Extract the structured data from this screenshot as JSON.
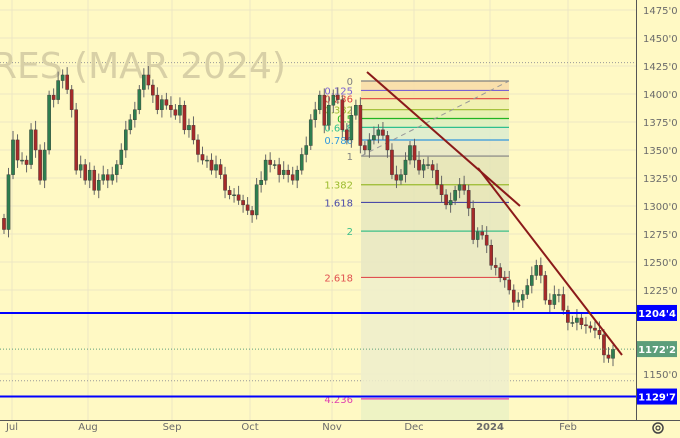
{
  "watermark": "RES (MAR 2024)",
  "chart_data": {
    "type": "candlestick",
    "ylim": [
      1120,
      1480
    ],
    "y_ticks": [
      "1475'0",
      "1450'0",
      "1425'0",
      "1400'0",
      "1375'0",
      "1350'0",
      "1325'0",
      "1300'0",
      "1275'0",
      "1250'0",
      "1225'0",
      "1150'0"
    ],
    "y_tick_values": [
      1475,
      1450,
      1425,
      1400,
      1375,
      1350,
      1325,
      1300,
      1275,
      1250,
      1225,
      1150
    ],
    "x_ticks": [
      "Jul",
      "Aug",
      "Sep",
      "Oct",
      "Nov",
      "Dec",
      "2024",
      "Feb"
    ],
    "closes": [
      1279,
      1328,
      1359,
      1341,
      1341,
      1337,
      1368,
      1350,
      1323,
      1350,
      1399,
      1395,
      1412,
      1417,
      1404,
      1386,
      1332,
      1337,
      1323,
      1332,
      1314,
      1323,
      1328,
      1323,
      1328,
      1337,
      1350,
      1368,
      1377,
      1386,
      1404,
      1417,
      1408,
      1399,
      1386,
      1395,
      1390,
      1386,
      1381,
      1390,
      1368,
      1372,
      1359,
      1346,
      1341,
      1341,
      1332,
      1337,
      1328,
      1314,
      1310,
      1310,
      1305,
      1301,
      1296,
      1292,
      1319,
      1323,
      1341,
      1337,
      1337,
      1328,
      1332,
      1328,
      1323,
      1332,
      1346,
      1354,
      1377,
      1386,
      1399,
      1372,
      1390,
      1399,
      1395,
      1368,
      1359,
      1381,
      1390,
      1354,
      1350,
      1359,
      1363,
      1368,
      1363,
      1350,
      1328,
      1323,
      1328,
      1341,
      1354,
      1341,
      1332,
      1337,
      1337,
      1332,
      1319,
      1310,
      1301,
      1305,
      1314,
      1319,
      1314,
      1298,
      1270,
      1277,
      1274,
      1265,
      1247,
      1245,
      1236,
      1234,
      1225,
      1214,
      1216,
      1221,
      1229,
      1238,
      1247,
      1238,
      1216,
      1212,
      1221,
      1221,
      1207,
      1196,
      1196,
      1200,
      1194,
      1193,
      1191,
      1189,
      1185,
      1167,
      1164,
      1172
    ],
    "fibonacci": {
      "levels": [
        {
          "label": "0",
          "value": 1411.6,
          "color": "#808080"
        },
        {
          "label": "0.125",
          "value": 1403.2,
          "color": "#7b61d1"
        },
        {
          "label": "0.236",
          "value": 1395.8,
          "color": "#e04040"
        },
        {
          "label": "0.382",
          "value": 1386.0,
          "color": "#9bbb2e"
        },
        {
          "label": "0.5",
          "value": 1378.1,
          "color": "#22b522"
        },
        {
          "label": "0.618",
          "value": 1370.2,
          "color": "#2fbf8f"
        },
        {
          "label": "0.786",
          "value": 1358.9,
          "color": "#3399dd"
        },
        {
          "label": "1",
          "value": 1344.6,
          "color": "#808080"
        },
        {
          "label": "1.382",
          "value": 1319.0,
          "color": "#9bbb2e"
        },
        {
          "label": "1.618",
          "value": 1303.2,
          "color": "#4a4aa8"
        },
        {
          "label": "2",
          "value": 1277.6,
          "color": "#3cbf8a"
        },
        {
          "label": "2.618",
          "value": 1236.2,
          "color": "#e05050"
        },
        {
          "label": "4.236",
          "value": 1127.8,
          "color": "#e040b0"
        }
      ]
    },
    "horizontal_lines": [
      {
        "label": "1204'4",
        "value": 1204.5,
        "color": "#0000ff"
      },
      {
        "label": "1129'7",
        "value": 1129.875,
        "color": "#0000ff"
      }
    ],
    "last_price": {
      "label": "1172'2",
      "value": 1172.25,
      "color": "#5d9e7a"
    },
    "trendline_color": "#8b1a1a",
    "up_color": "#2e7d4f",
    "down_color": "#a52a2a",
    "grid": true
  },
  "settings_icon": "gear-icon"
}
